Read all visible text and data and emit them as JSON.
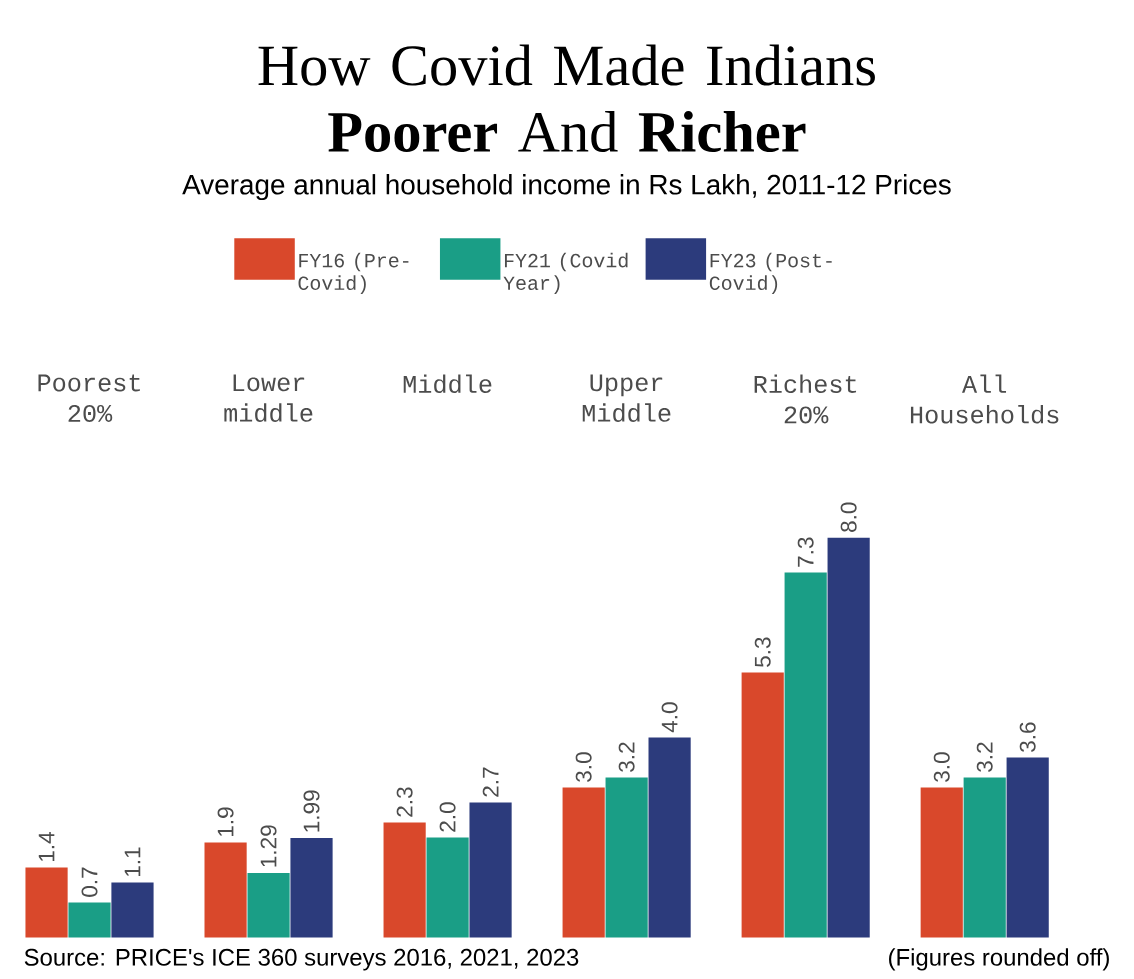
{
  "chart_data": {
    "type": "bar",
    "title": "How Covid Made Indians **Poorer** And **Richer**",
    "subtitle": "Average annual household income in Rs Lakh, 2011-12 Prices",
    "categories": [
      "Poorest 20%",
      "Lower middle",
      "Middle",
      "Upper Middle",
      "Richest 20%",
      "All Households"
    ],
    "series": [
      {
        "name": "FY16 (Pre-Covid)",
        "color": "#d9482b",
        "values": [
          1.4,
          1.9,
          2.3,
          3.0,
          5.3,
          3.0
        ],
        "value_labels": [
          "1.4",
          "1.9",
          "2.3",
          "3.0",
          "5.3",
          "3.0"
        ]
      },
      {
        "name": "FY21 (Covid Year)",
        "color": "#1a9e86",
        "values": [
          0.7,
          1.29,
          2.0,
          3.2,
          7.3,
          3.2
        ],
        "value_labels": [
          "0.7",
          "1.29",
          "2.0",
          "3.2",
          "7.3",
          "3.2"
        ]
      },
      {
        "name": "FY23 (Post-Covid)",
        "color": "#2c3b7c",
        "values": [
          1.1,
          1.99,
          2.7,
          4.0,
          8.0,
          3.6
        ],
        "value_labels": [
          "1.1",
          "1.99",
          "2.7",
          "4.0",
          "8.0",
          "3.6"
        ]
      }
    ],
    "legend": "top",
    "annotations": [
      "Source: PRICE's ICE 360 surveys 2016, 2021, 2023",
      "(Figures rounded off)"
    ]
  }
}
